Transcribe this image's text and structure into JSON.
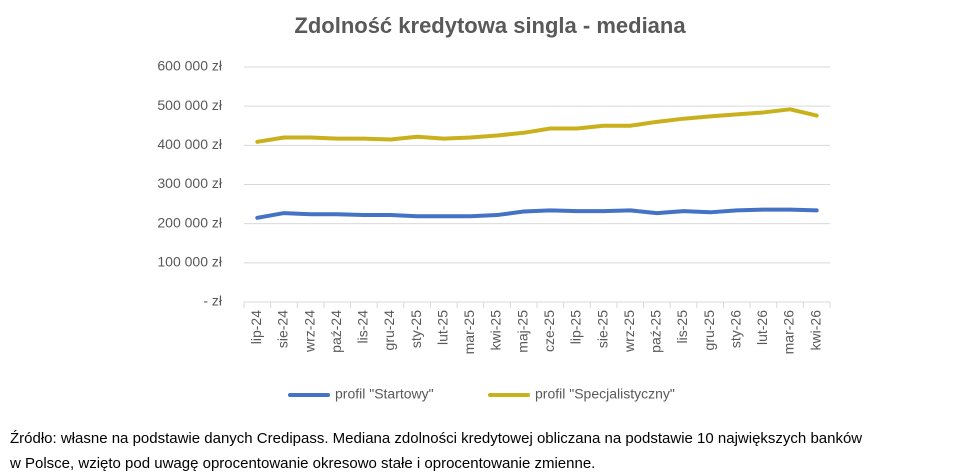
{
  "chart_data": {
    "type": "line",
    "title": "Zdolność kredytowa singla - mediana",
    "categories": [
      "lip-24",
      "sie-24",
      "wrz-24",
      "paź-24",
      "lis-24",
      "gru-24",
      "sty-25",
      "lut-25",
      "mar-25",
      "kwi-25",
      "maj-25",
      "cze-25",
      "lip-25",
      "sie-25",
      "wrz-25",
      "paź-25",
      "lis-25",
      "gru-25",
      "sty-26",
      "lut-26",
      "mar-26",
      "kwi-26"
    ],
    "series": [
      {
        "name": "profil \"Startowy\"",
        "color": "#4472c4",
        "values": [
          215000,
          227000,
          224000,
          224000,
          222000,
          222000,
          219000,
          219000,
          219000,
          222000,
          231000,
          234000,
          232000,
          232000,
          234000,
          227000,
          232000,
          229000,
          234000,
          236000,
          236000,
          234000
        ]
      },
      {
        "name": "profil \"Specjalistyczny\"",
        "color": "#c9b11e",
        "values": [
          409000,
          420000,
          420000,
          417000,
          417000,
          415000,
          422000,
          417000,
          420000,
          425000,
          432000,
          443000,
          443000,
          450000,
          450000,
          460000,
          468000,
          474000,
          479000,
          484000,
          492000,
          476000
        ]
      }
    ],
    "ylim": [
      0,
      600000
    ],
    "yticks": [
      {
        "value": 0,
        "label": "- zł"
      },
      {
        "value": 100000,
        "label": "100 000 zł"
      },
      {
        "value": 200000,
        "label": "200 000 zł"
      },
      {
        "value": 300000,
        "label": "300 000 zł"
      },
      {
        "value": 400000,
        "label": "400 000 zł"
      },
      {
        "value": 500000,
        "label": "500 000 zł"
      },
      {
        "value": 600000,
        "label": "600 000 zł"
      }
    ],
    "grid": true,
    "legend": "bottom"
  },
  "note": [
    "Źródło: własne na podstawie danych Credipass. Mediana zdolności kredytowej obliczana na podstawie 10 największych banków",
    "w Polsce, wzięto pod uwagę oprocentowanie okresowo stałe i oprocentowanie zmienne."
  ]
}
